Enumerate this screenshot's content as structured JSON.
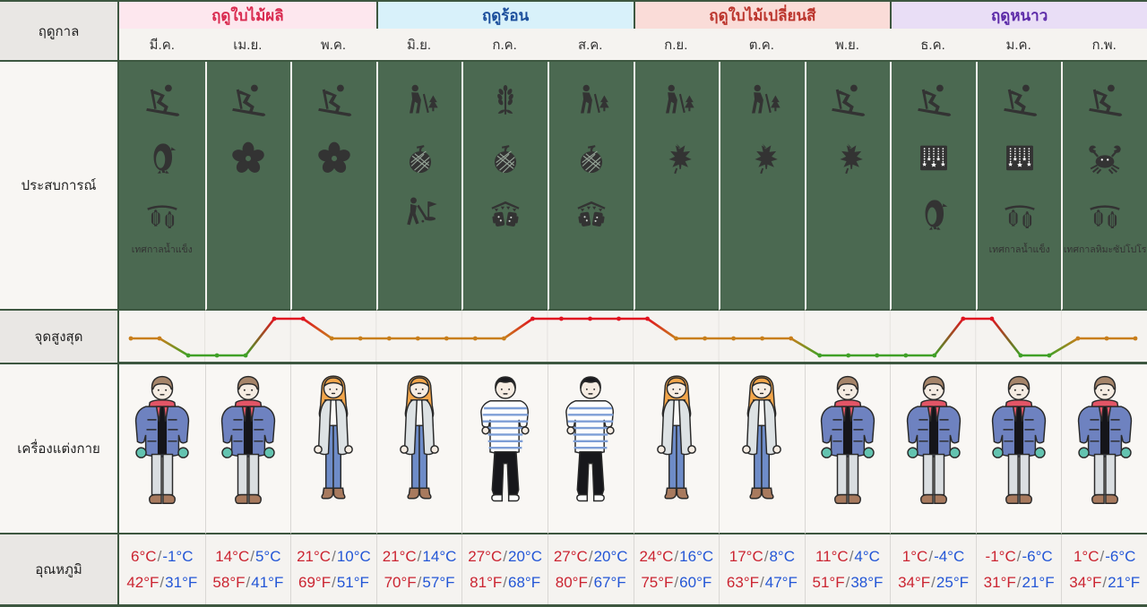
{
  "row_labels": {
    "season": "ฤดูกาล",
    "experience": "ประสบการณ์",
    "peak": "จุดสูงสุด",
    "clothing": "เครื่องแต่งกาย",
    "temperature": "อุณหภูมิ"
  },
  "seasons": [
    {
      "key": "spring",
      "label": "ฤดูใบไม้ผลิ",
      "text_color": "#d92b50",
      "bg": "#fde7ee",
      "months": [
        "มี.ค.",
        "เม.ย.",
        "พ.ค."
      ]
    },
    {
      "key": "summer",
      "label": "ฤดูร้อน",
      "text_color": "#1c4f9c",
      "bg": "#d8f1fa",
      "months": [
        "มิ.ย.",
        "ก.ค.",
        "ส.ค."
      ]
    },
    {
      "key": "autumn",
      "label": "ฤดูใบไม้เปลี่ยนสี",
      "text_color": "#bb342c",
      "bg": "#fadcd8",
      "months": [
        "ก.ย.",
        "ต.ค.",
        "พ.ย."
      ]
    },
    {
      "key": "winter",
      "label": "ฤดูหนาว",
      "text_color": "#5c2ba8",
      "bg": "#e9def6",
      "months": [
        "ธ.ค.",
        "ม.ค.",
        "ก.พ."
      ]
    }
  ],
  "columns": [
    {
      "month": "มี.ค.",
      "icons": [
        "ski",
        "penguin",
        "lantern"
      ],
      "caption": "เทศกาลน้ำแข็ง",
      "figure": "winter-man",
      "temp": {
        "c_high": "6°C",
        "c_low": "-1°C",
        "f_high": "42°F",
        "f_low": "31°F"
      }
    },
    {
      "month": "เม.ย.",
      "icons": [
        "ski",
        "sakura"
      ],
      "caption": "",
      "figure": "winter-man",
      "temp": {
        "c_high": "14°C",
        "c_low": "5°C",
        "f_high": "58°F",
        "f_low": "41°F"
      }
    },
    {
      "month": "พ.ค.",
      "icons": [
        "ski",
        "sakura"
      ],
      "caption": "",
      "figure": "coat-woman",
      "temp": {
        "c_high": "21°C",
        "c_low": "10°C",
        "f_high": "69°F",
        "f_low": "51°F"
      }
    },
    {
      "month": "มิ.ย.",
      "icons": [
        "hike",
        "melon",
        "golf"
      ],
      "caption": "",
      "figure": "coat-woman",
      "temp": {
        "c_high": "21°C",
        "c_low": "14°C",
        "f_high": "70°F",
        "f_low": "57°F"
      }
    },
    {
      "month": "ก.ค.",
      "icons": [
        "lavender",
        "melon",
        "beer"
      ],
      "caption": "",
      "figure": "striped-man",
      "temp": {
        "c_high": "27°C",
        "c_low": "20°C",
        "f_high": "81°F",
        "f_low": "68°F"
      }
    },
    {
      "month": "ส.ค.",
      "icons": [
        "hike",
        "melon",
        "beer"
      ],
      "caption": "",
      "figure": "striped-man",
      "temp": {
        "c_high": "27°C",
        "c_low": "20°C",
        "f_high": "80°F",
        "f_low": "67°F"
      }
    },
    {
      "month": "ก.ย.",
      "icons": [
        "hike",
        "maple"
      ],
      "caption": "",
      "figure": "coat-woman",
      "temp": {
        "c_high": "24°C",
        "c_low": "16°C",
        "f_high": "75°F",
        "f_low": "60°F"
      }
    },
    {
      "month": "ต.ค.",
      "icons": [
        "hike",
        "maple"
      ],
      "caption": "",
      "figure": "coat-woman",
      "temp": {
        "c_high": "17°C",
        "c_low": "8°C",
        "f_high": "63°F",
        "f_low": "47°F"
      }
    },
    {
      "month": "พ.ย.",
      "icons": [
        "ski",
        "maple"
      ],
      "caption": "",
      "figure": "winter-man",
      "temp": {
        "c_high": "11°C",
        "c_low": "4°C",
        "f_high": "51°F",
        "f_low": "38°F"
      }
    },
    {
      "month": "ธ.ค.",
      "icons": [
        "ski",
        "illumination",
        "penguin"
      ],
      "caption": "",
      "figure": "winter-man",
      "temp": {
        "c_high": "1°C",
        "c_low": "-4°C",
        "f_high": "34°F",
        "f_low": "25°F"
      }
    },
    {
      "month": "ม.ค.",
      "icons": [
        "ski",
        "illumination",
        "lantern"
      ],
      "caption": "เทศกาลน้ำแข็ง",
      "figure": "winter-man",
      "temp": {
        "c_high": "-1°C",
        "c_low": "-6°C",
        "f_high": "31°F",
        "f_low": "21°F"
      }
    },
    {
      "month": "ก.พ.",
      "icons": [
        "ski",
        "crab",
        "lantern"
      ],
      "caption": "เทศกาลหิมะซัปโปโร",
      "figure": "winter-man",
      "temp": {
        "c_high": "1°C",
        "c_low": "-6°C",
        "f_high": "34°F",
        "f_low": "21°F"
      }
    }
  ],
  "chart_data": {
    "type": "line",
    "title": "จุดสูงสุด",
    "categories": [
      "มี.ค.",
      "เม.ย.",
      "พ.ค.",
      "มิ.ย.",
      "ก.ค.",
      "ส.ค.",
      "ก.ย.",
      "ต.ค.",
      "พ.ย.",
      "ธ.ค.",
      "ม.ค.",
      "ก.พ."
    ],
    "points_per_month": 3,
    "level_names": {
      "1": "low",
      "2": "mid",
      "3": "high"
    },
    "values": [
      2,
      2,
      1,
      1,
      1,
      3,
      3,
      2,
      2,
      2,
      2,
      2,
      2,
      2,
      3,
      3,
      3,
      3,
      3,
      2,
      2,
      2,
      2,
      2,
      1,
      1,
      1,
      1,
      1,
      3,
      3,
      1,
      1,
      2,
      2,
      2
    ],
    "colors": {
      "high": "#e01320",
      "mid": "#c87e1b",
      "low": "#3fa026"
    },
    "grid": "vertical lines at month boundaries",
    "legend": "none"
  },
  "colors": {
    "table_border_green": "#3d5740",
    "experience_bg": "#4b6951",
    "icon_color": "#333333",
    "label_cell_bg": "#e9e7e4",
    "light_row_bg": "#f8f6f3",
    "chart_row_bg": "#f5f3f0",
    "temp_high": "#cb2431",
    "temp_low": "#2356d6",
    "slash_gray": "#7d7d7d"
  }
}
